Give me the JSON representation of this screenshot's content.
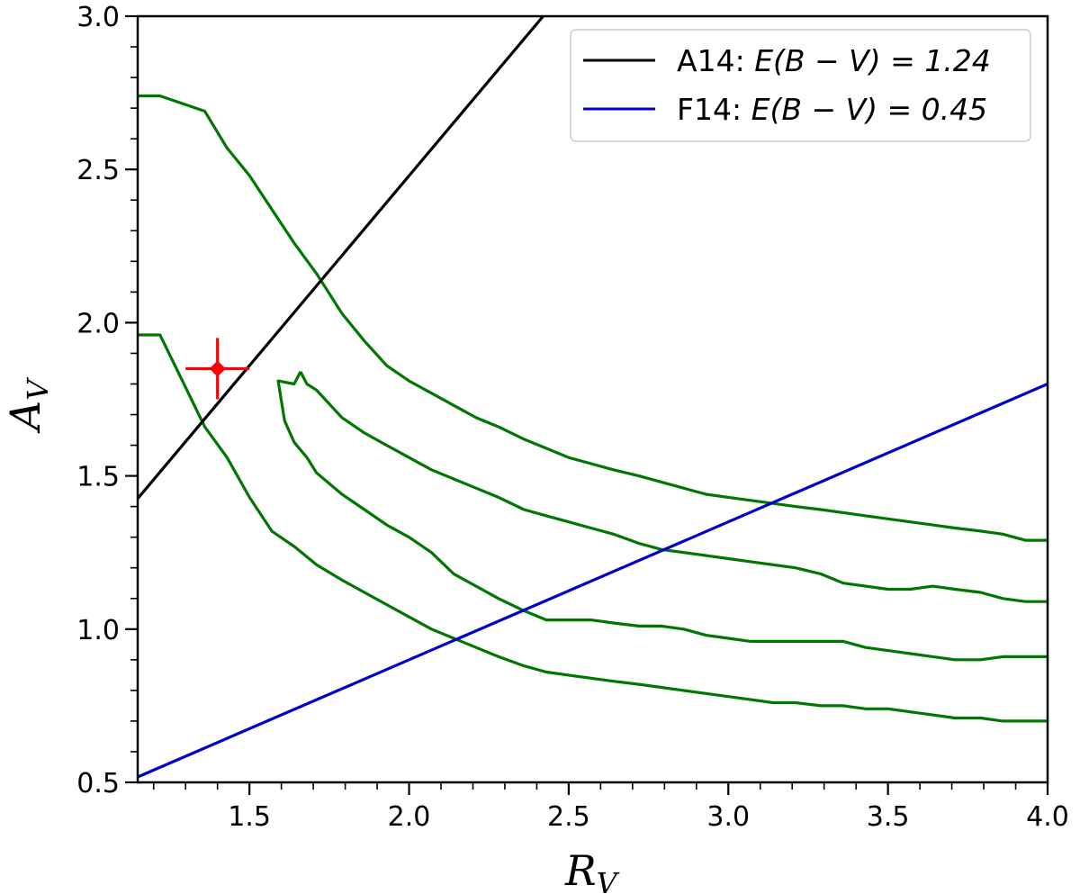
{
  "chart_data": {
    "type": "line",
    "xlim": [
      1.15,
      4.0
    ],
    "ylim": [
      0.5,
      3.0
    ],
    "xticks": [
      1.5,
      2.0,
      2.5,
      3.0,
      3.5,
      4.0
    ],
    "xtick_labels": [
      "1.5",
      "2.0",
      "2.5",
      "3.0",
      "3.5",
      "4.0"
    ],
    "yticks": [
      0.5,
      1.0,
      1.5,
      2.0,
      2.5,
      3.0
    ],
    "ytick_labels": [
      "0.5",
      "1.0",
      "1.5",
      "2.0",
      "2.5",
      "3.0"
    ],
    "xlabel_main": "R",
    "xlabel_sub": "V",
    "ylabel_main": "A",
    "ylabel_sub": "V",
    "grid": false,
    "legend_position": "top-right",
    "series": [
      {
        "name": "A14: E(B − V) = 1.24",
        "legend_prefix": "A14: ",
        "legend_math": "E(B − V) = 1.24",
        "color": "#000000",
        "x": [
          1.15,
          2.42
        ],
        "y": [
          1.426,
          3.0
        ]
      },
      {
        "name": "F14: E(B − V) = 0.45",
        "legend_prefix": "F14: ",
        "legend_math": "E(B − V) = 0.45",
        "color": "#0000cc",
        "x": [
          1.15,
          4.0
        ],
        "y": [
          0.5175,
          1.8
        ]
      }
    ],
    "contours": [
      {
        "color": "#007700",
        "x": [
          1.15,
          1.22,
          1.36,
          1.43,
          1.5,
          1.57,
          1.64,
          1.71,
          1.79,
          1.86,
          1.93,
          2.0,
          2.07,
          2.14,
          2.21,
          2.28,
          2.36,
          2.43,
          2.5,
          2.57,
          2.64,
          2.72,
          2.79,
          2.86,
          2.93,
          3.0,
          3.07,
          3.14,
          3.21,
          3.29,
          3.36,
          3.43,
          3.5,
          3.57,
          3.64,
          3.71,
          3.79,
          3.86,
          3.93,
          4.0
        ],
        "y": [
          2.74,
          2.74,
          2.69,
          2.57,
          2.48,
          2.37,
          2.26,
          2.16,
          2.03,
          1.94,
          1.86,
          1.81,
          1.77,
          1.73,
          1.69,
          1.66,
          1.62,
          1.59,
          1.56,
          1.54,
          1.52,
          1.5,
          1.48,
          1.46,
          1.44,
          1.43,
          1.42,
          1.41,
          1.4,
          1.39,
          1.38,
          1.37,
          1.36,
          1.35,
          1.34,
          1.33,
          1.32,
          1.31,
          1.29,
          1.29
        ]
      },
      {
        "color": "#007700",
        "x": [
          1.15,
          1.22,
          1.29,
          1.36,
          1.43,
          1.5,
          1.57,
          1.64,
          1.71,
          1.79,
          1.86,
          1.93,
          2.0,
          2.07,
          2.14,
          2.21,
          2.28,
          2.36,
          2.43,
          2.5,
          2.57,
          2.64,
          2.72,
          2.79,
          2.86,
          2.93,
          3.0,
          3.07,
          3.14,
          3.21,
          3.29,
          3.36,
          3.43,
          3.5,
          3.57,
          3.64,
          3.71,
          3.79,
          3.86,
          3.93,
          4.0
        ],
        "y": [
          1.96,
          1.96,
          1.81,
          1.66,
          1.56,
          1.43,
          1.32,
          1.27,
          1.21,
          1.16,
          1.12,
          1.08,
          1.04,
          1.0,
          0.97,
          0.94,
          0.91,
          0.88,
          0.86,
          0.85,
          0.84,
          0.83,
          0.82,
          0.81,
          0.8,
          0.79,
          0.78,
          0.77,
          0.76,
          0.76,
          0.75,
          0.75,
          0.74,
          0.74,
          0.73,
          0.72,
          0.71,
          0.71,
          0.7,
          0.7,
          0.7
        ]
      },
      {
        "color": "#007700",
        "x": [
          1.66,
          1.64,
          1.59,
          1.61,
          1.64,
          1.68,
          1.71,
          1.79,
          1.86,
          1.93,
          2.0,
          2.07,
          2.14,
          2.21,
          2.28,
          2.36,
          2.43,
          2.5,
          2.57,
          2.64,
          2.72,
          2.79,
          2.86,
          2.93,
          3.0,
          3.07,
          3.14,
          3.21,
          3.29,
          3.36,
          3.43,
          3.5,
          3.57,
          3.64,
          3.71,
          3.79,
          3.86,
          3.93,
          4.0,
          4.0
        ],
        "y": [
          1.84,
          1.8,
          1.81,
          1.68,
          1.61,
          1.56,
          1.51,
          1.44,
          1.39,
          1.34,
          1.3,
          1.25,
          1.18,
          1.14,
          1.1,
          1.06,
          1.03,
          1.03,
          1.03,
          1.02,
          1.01,
          1.01,
          1.0,
          0.98,
          0.97,
          0.96,
          0.96,
          0.96,
          0.96,
          0.96,
          0.94,
          0.93,
          0.92,
          0.91,
          0.9,
          0.9,
          0.91,
          0.91,
          0.91,
          0.91
        ]
      },
      {
        "color": "#007700",
        "x": [
          1.66,
          1.68,
          1.71,
          1.79,
          1.86,
          1.93,
          2.0,
          2.07,
          2.14,
          2.21,
          2.28,
          2.36,
          2.43,
          2.5,
          2.57,
          2.64,
          2.72,
          2.79,
          2.86,
          2.93,
          3.0,
          3.07,
          3.14,
          3.21,
          3.29,
          3.36,
          3.43,
          3.5,
          3.57,
          3.64,
          3.71,
          3.79,
          3.86,
          3.93,
          4.0
        ],
        "y": [
          1.84,
          1.8,
          1.78,
          1.69,
          1.64,
          1.6,
          1.56,
          1.52,
          1.49,
          1.46,
          1.43,
          1.39,
          1.37,
          1.35,
          1.33,
          1.31,
          1.28,
          1.26,
          1.25,
          1.24,
          1.23,
          1.22,
          1.21,
          1.2,
          1.18,
          1.15,
          1.14,
          1.13,
          1.13,
          1.14,
          1.13,
          1.12,
          1.1,
          1.09,
          1.09
        ]
      }
    ],
    "point": {
      "x": 1.4,
      "y": 1.85,
      "xerr": 0.1,
      "yerr": 0.1,
      "color": "#ff0000"
    }
  }
}
